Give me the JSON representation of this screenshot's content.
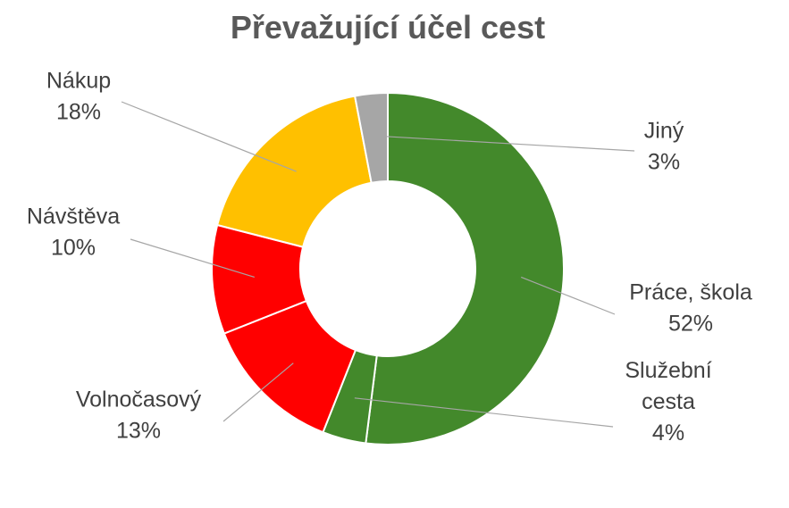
{
  "chart_data": {
    "type": "pie",
    "title": "Převažující účel cest",
    "slices": [
      {
        "label": "Práce, škola",
        "value": 52,
        "value_label": "52%",
        "color": "#43892b"
      },
      {
        "label": "Služební cesta",
        "value": 4,
        "value_label": "4%",
        "color": "#43892b"
      },
      {
        "label": "Volnočasový",
        "value": 13,
        "value_label": "13%",
        "color": "#ff0000"
      },
      {
        "label": "Návštěva",
        "value": 10,
        "value_label": "10%",
        "color": "#ff0000"
      },
      {
        "label": "Nákup",
        "value": 18,
        "value_label": "18%",
        "color": "#ffc000"
      },
      {
        "label": "Jiný",
        "value": 3,
        "value_label": "3%",
        "color": "#a6a6a6"
      }
    ],
    "donut": true,
    "legend": "none"
  }
}
